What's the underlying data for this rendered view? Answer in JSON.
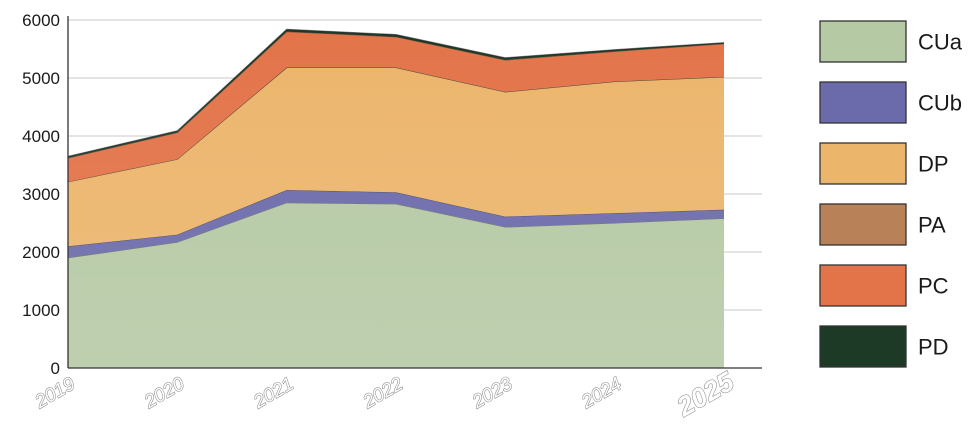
{
  "chart_data": {
    "type": "area",
    "stacked": true,
    "categories": [
      "2019",
      "2020",
      "2021",
      "2022",
      "2023",
      "2024",
      "2025"
    ],
    "series": [
      {
        "name": "CUa",
        "color": "#b5c9a4",
        "values": [
          1900,
          2170,
          2850,
          2830,
          2430,
          2500,
          2580
        ]
      },
      {
        "name": "CUb",
        "color": "#6b6aaa",
        "values": [
          200,
          130,
          220,
          200,
          180,
          170,
          150
        ]
      },
      {
        "name": "DP",
        "color": "#ecb56c",
        "values": [
          1110,
          1300,
          2110,
          2150,
          2150,
          2270,
          2290
        ]
      },
      {
        "name": "PA",
        "color": "#b98158",
        "values": [
          0,
          0,
          0,
          0,
          0,
          0,
          0
        ]
      },
      {
        "name": "PC",
        "color": "#e3744a",
        "values": [
          410,
          460,
          620,
          530,
          550,
          520,
          570
        ]
      },
      {
        "name": "PD",
        "color": "#1d3a26",
        "values": [
          30,
          30,
          40,
          40,
          40,
          30,
          20
        ]
      }
    ],
    "y_ticks": [
      "0",
      "1000",
      "2000",
      "3000",
      "4000",
      "5000",
      "6000"
    ],
    "ylim": [
      0,
      6000
    ],
    "grid": true,
    "legend_position": "right",
    "title": "",
    "xlabel": "",
    "ylabel": ""
  }
}
